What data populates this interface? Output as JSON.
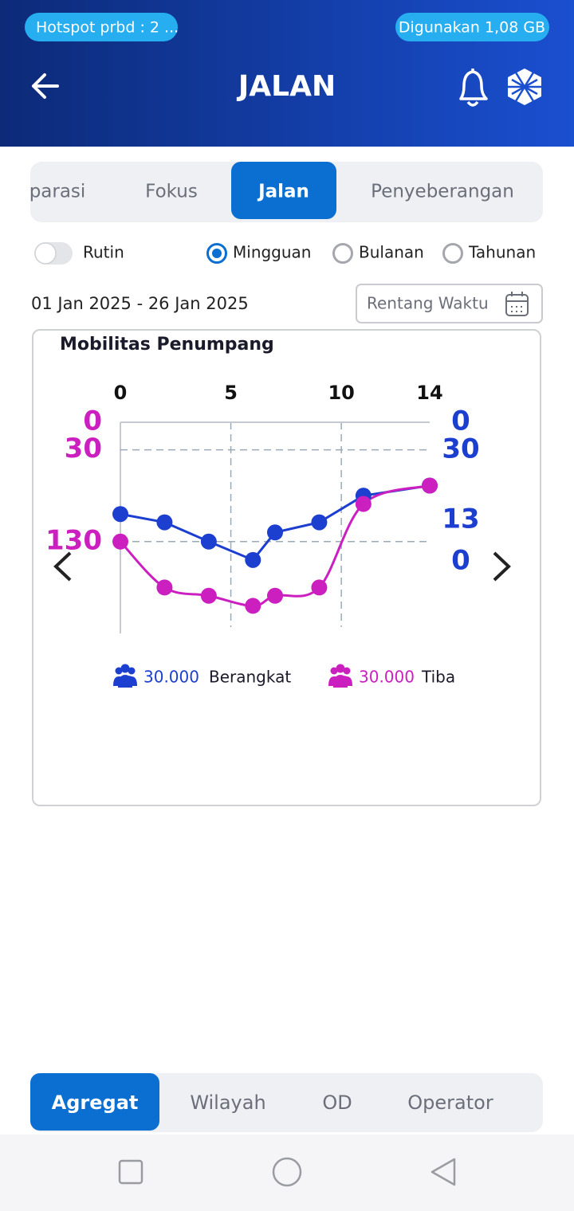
{
  "status_bar": {
    "hotspot": "Hotspot prbd : 2 ...",
    "usage": "Digunakan 1,08 GB"
  },
  "header": {
    "title": "JALAN"
  },
  "tabs": {
    "items": [
      "parasi",
      "Fokus",
      "Jalan",
      "Penyeberangan"
    ],
    "active": 2
  },
  "filters": {
    "toggle_label": "Rutin",
    "radios": [
      "Mingguan",
      "Bulanan",
      "Tahunan"
    ],
    "selected": 0
  },
  "date_range": "01 Jan 2025 - 26 Jan 2025",
  "range_button": "Rentang Waktu",
  "chart_data": {
    "type": "line",
    "title": "Mobilitas Penumpang",
    "x": [
      0,
      2,
      4,
      6,
      7,
      9,
      11,
      14
    ],
    "xlim": [
      0,
      14
    ],
    "xticks": [
      0,
      5,
      10,
      14
    ],
    "ylim": [
      230,
      0
    ],
    "yticks": [
      0,
      30,
      130
    ],
    "y2_labels": [
      "0",
      "30",
      "13",
      "0"
    ],
    "grid": true,
    "series": [
      {
        "name": "Berangkat",
        "total_label": "30.000",
        "color": "#1c3fcf",
        "smooth": false,
        "values": [
          100,
          109,
          130,
          150,
          120,
          109,
          80,
          69
        ]
      },
      {
        "name": "Tiba",
        "total_label": "30.000",
        "color": "#cc1fc0",
        "smooth": true,
        "values": [
          130,
          180,
          189,
          200,
          189,
          180,
          89,
          69
        ]
      }
    ]
  },
  "bottom_tabs": {
    "items": [
      "Agregat",
      "Wilayah",
      "OD",
      "Operator"
    ],
    "active": 0
  }
}
